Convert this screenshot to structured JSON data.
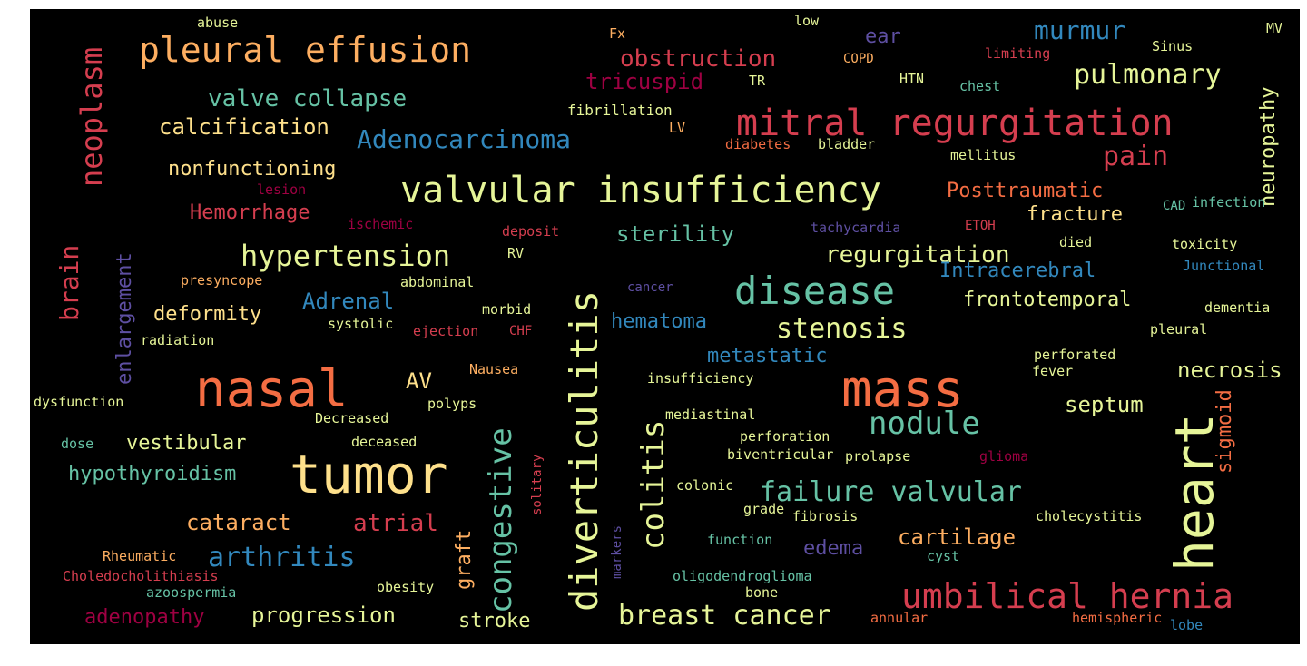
{
  "colors": {
    "cream": "#fee08b",
    "light_yellow": "#e6f598",
    "teal": "#66c2a5",
    "blue": "#3288bd",
    "indigo": "#5e4fa2",
    "orange": "#fdae61",
    "coral": "#f46d43",
    "red": "#d53e4f",
    "crimson": "#9e0142"
  },
  "words": {
    "tumor": "tumor",
    "nasal": "nasal",
    "mass": "mass",
    "heart": "heart",
    "diverticulitis": "diverticulitis",
    "valvular_insufficiency": "valvular insufficiency",
    "mitral_regurgitation": "mitral regurgitation",
    "umbilical_hernia": "umbilical hernia",
    "pleural_effusion": "pleural effusion",
    "disease": "disease",
    "neoplasm": "neoplasm",
    "hypertension": "hypertension",
    "breast_cancer": "breast cancer",
    "failure_valvular": "failure valvular",
    "congestive": "congestive",
    "colitis": "colitis",
    "nodule": "nodule",
    "stenosis": "stenosis",
    "adenocarcinoma": "Adenocarcinoma",
    "arthritis": "arthritis",
    "murmur": "murmur",
    "pulmonary": "pulmonary",
    "obstruction": "obstruction",
    "valve_collapse": "valve collapse",
    "calcification": "calcification",
    "tricuspid": "tricuspid",
    "regurgitation": "regurgitation",
    "pain": "pain",
    "neuropathy": "neuropathy",
    "brain": "brain",
    "enlargement": "enlargement",
    "posttraumatic": "Posttraumatic",
    "fracture": "fracture",
    "sterility": "sterility",
    "intracerebral": "Intracerebral",
    "frontotemporal": "frontotemporal",
    "hemorrhage": "Hemorrhage",
    "nonfunctioning": "nonfunctioning",
    "adrenal": "Adrenal",
    "deformity": "deformity",
    "hematoma": "hematoma",
    "metastatic": "metastatic",
    "necrosis": "necrosis",
    "septum": "septum",
    "sigmoid": "sigmoid",
    "atrial": "atrial",
    "graft": "graft",
    "cartilage": "cartilage",
    "cataract": "cataract",
    "vestibular": "vestibular",
    "hypothyroidism": "hypothyroidism",
    "adenopathy": "adenopathy",
    "progression": "progression",
    "stroke": "stroke",
    "edema": "edema",
    "av": "AV",
    "ear": "ear",
    "abuse": "abuse",
    "low": "low",
    "fx": "Fx",
    "copd": "COPD",
    "limiting": "limiting",
    "sinus": "Sinus",
    "mv": "MV",
    "tr": "TR",
    "htn": "HTN",
    "chest": "chest",
    "fibrillation": "fibrillation",
    "lv": "LV",
    "diabetes": "diabetes",
    "bladder": "bladder",
    "mellitus": "mellitus",
    "lesion": "lesion",
    "ischemic": "ischemic",
    "deposit": "deposit",
    "tachycardia": "tachycardia",
    "etoh": "ETOH",
    "cad": "CAD",
    "infection": "infection",
    "died": "died",
    "toxicity": "toxicity",
    "rv": "RV",
    "presyncope": "presyncope",
    "abdominal": "abdominal",
    "cancer": "cancer",
    "junctional": "Junctional",
    "morbid": "morbid",
    "systolic": "systolic",
    "ejection": "ejection",
    "chf": "CHF",
    "dementia": "dementia",
    "radiation": "radiation",
    "pleural": "pleural",
    "perforated": "perforated",
    "fever": "fever",
    "nausea": "Nausea",
    "insufficiency": "insufficiency",
    "dysfunction": "dysfunction",
    "polyps": "polyps",
    "decreased": "Decreased",
    "mediastinal": "mediastinal",
    "perforation": "perforation",
    "dose": "dose",
    "deceased": "deceased",
    "biventricular": "biventricular",
    "prolapse": "prolapse",
    "glioma": "glioma",
    "solitary": "solitary",
    "colonic": "colonic",
    "grade": "grade",
    "fibrosis": "fibrosis",
    "cholecystitis": "cholecystitis",
    "markers": "markers",
    "rheumatic": "Rheumatic",
    "function": "function",
    "cyst": "cyst",
    "choledocholithiasis": "Choledocholithiasis",
    "oligodendroglioma": "oligodendroglioma",
    "azoospermia": "azoospermia",
    "obesity": "obesity",
    "bone": "bone",
    "annular": "annular",
    "hemispheric": "hemispheric",
    "lobe": "lobe"
  }
}
